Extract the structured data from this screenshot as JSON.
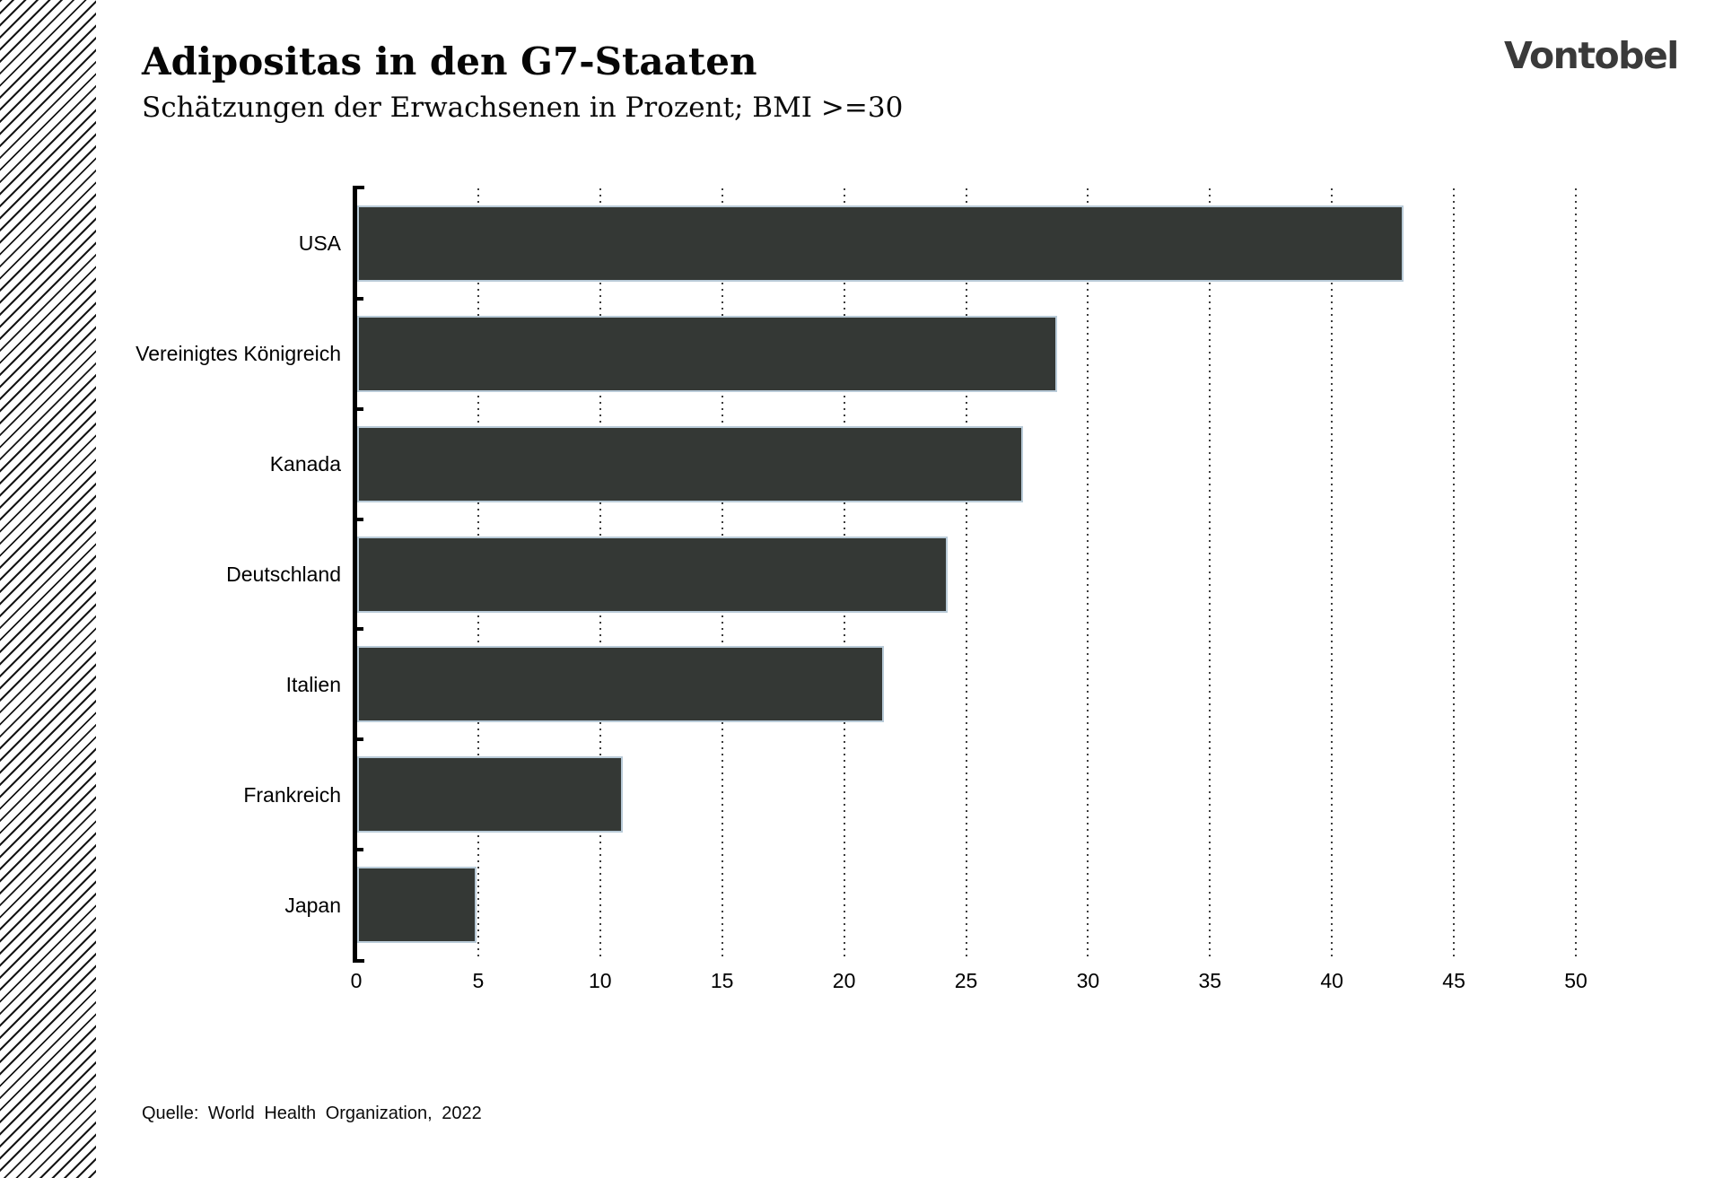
{
  "header": {
    "title": "Adipositas in den G7-Staaten",
    "subtitle": "Schätzungen der Erwachsenen in Prozent; BMI >=30",
    "logo_text": "Vontobel"
  },
  "footer": {
    "source": "Quelle: World Health Organization, 2022"
  },
  "colors": {
    "bar_fill": "#343835",
    "bar_border": "#b9cbd8",
    "axis": "#000000",
    "gridline": "#3d3d3d",
    "logo": "#3a3a3a"
  },
  "chart_data": {
    "type": "bar",
    "orientation": "horizontal",
    "title": "Adipositas in den G7-Staaten",
    "subtitle": "Schätzungen der Erwachsenen in Prozent; BMI >=30",
    "categories": [
      "USA",
      "Vereinigtes Königreich",
      "Kanada",
      "Deutschland",
      "Italien",
      "Frankreich",
      "Japan"
    ],
    "values": [
      42.9,
      28.7,
      27.3,
      24.2,
      21.6,
      10.9,
      4.9
    ],
    "xlabel": "",
    "ylabel": "",
    "xlim": [
      0,
      50
    ],
    "xticks": [
      0,
      5,
      10,
      15,
      20,
      25,
      30,
      35,
      40,
      45,
      50
    ],
    "grid": "vertical-dotted",
    "legend": "none",
    "source": "Quelle: World Health Organization, 2022"
  }
}
